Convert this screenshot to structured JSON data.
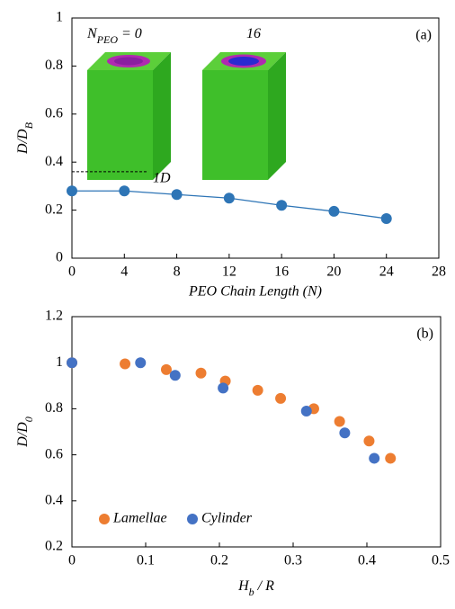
{
  "chart_data": [
    {
      "type": "line",
      "panel_label": "(a)",
      "x": [
        0,
        4,
        8,
        12,
        16,
        20,
        24
      ],
      "values": [
        0.28,
        0.28,
        0.265,
        0.25,
        0.22,
        0.195,
        0.165
      ],
      "color": "#2e75b6",
      "xlim": [
        0,
        28
      ],
      "xticks": [
        0,
        4,
        8,
        12,
        16,
        20,
        24,
        28
      ],
      "ylim": [
        0,
        1
      ],
      "yticks": [
        0,
        0.2,
        0.4,
        0.6,
        0.8,
        1
      ],
      "xlabel": "PEO Chain Length (N)",
      "ylabel": {
        "main": "D/D",
        "sub": "B"
      },
      "reference_line": {
        "label": "1D",
        "value": 0.36
      },
      "inset_labels": [
        {
          "main": "N",
          "sub": "PEO",
          "rest": " = 0"
        },
        {
          "main": "16"
        }
      ]
    },
    {
      "type": "scatter",
      "panel_label": "(b)",
      "series": [
        {
          "name": "Lamellae",
          "color": "#ed7d31",
          "x": [
            0,
            0.072,
            0.128,
            0.175,
            0.208,
            0.252,
            0.283,
            0.328,
            0.363,
            0.403,
            0.432
          ],
          "values": [
            1,
            0.995,
            0.97,
            0.955,
            0.92,
            0.88,
            0.845,
            0.8,
            0.745,
            0.66,
            0.585
          ]
        },
        {
          "name": "Cylinder",
          "color": "#4472c4",
          "x": [
            0,
            0.093,
            0.14,
            0.205,
            0.318,
            0.37,
            0.41
          ],
          "values": [
            1,
            1,
            0.945,
            0.89,
            0.79,
            0.695,
            0.585
          ]
        }
      ],
      "xlim": [
        0,
        0.5
      ],
      "xticks": [
        0,
        0.1,
        0.2,
        0.3,
        0.4,
        0.5
      ],
      "ylim": [
        0.2,
        1.2
      ],
      "yticks": [
        0.2,
        0.4,
        0.6,
        0.8,
        1,
        1.2
      ],
      "xlabel": {
        "main": "H",
        "sub": "b",
        "rest": " / R"
      },
      "ylabel": {
        "main": "D/D",
        "sub": "0"
      },
      "legend": "lower left"
    }
  ]
}
